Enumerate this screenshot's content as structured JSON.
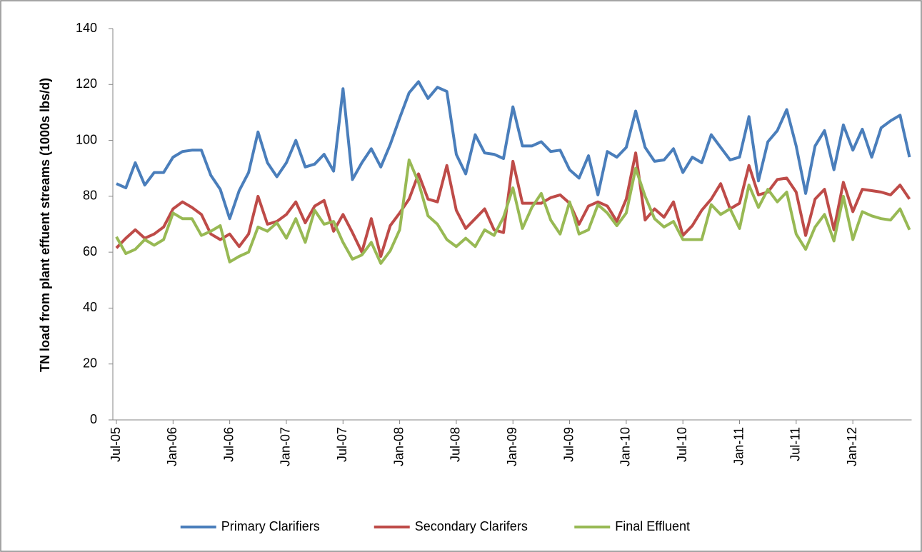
{
  "chart_data": {
    "type": "line",
    "ylabel": "TN load from plant effuent streams (1000s lbs/d)",
    "categories": [
      "Jul-05",
      null,
      null,
      null,
      null,
      null,
      "Jan-06",
      null,
      null,
      null,
      null,
      null,
      "Jul-06",
      null,
      null,
      null,
      null,
      null,
      "Jan-07",
      null,
      null,
      null,
      null,
      null,
      "Jul-07",
      null,
      null,
      null,
      null,
      null,
      "Jan-08",
      null,
      null,
      null,
      null,
      null,
      "Jul-08",
      null,
      null,
      null,
      null,
      null,
      "Jan-09",
      null,
      null,
      null,
      null,
      null,
      "Jul-09",
      null,
      null,
      null,
      null,
      null,
      "Jan-10",
      null,
      null,
      null,
      null,
      null,
      "Jul-10",
      null,
      null,
      null,
      null,
      null,
      "Jan-11",
      null,
      null,
      null,
      null,
      null,
      "Jul-11",
      null,
      null,
      null,
      null,
      null,
      "Jan-12",
      null,
      null,
      null,
      null,
      null,
      null
    ],
    "series": [
      {
        "name": "Primary Clarifiers",
        "color": "#4a7ebb",
        "values": [
          84.5,
          83,
          92,
          84,
          88.5,
          88.5,
          94,
          96,
          96.5,
          96.5,
          87.5,
          82.5,
          72,
          82,
          88.5,
          103,
          92,
          87,
          92,
          100,
          90.5,
          91.5,
          95,
          89,
          118.5,
          86,
          92,
          97,
          90.5,
          98.5,
          108,
          117,
          121,
          115,
          119,
          117.5,
          95,
          88,
          102,
          95.5,
          95,
          93.5,
          112,
          98,
          98,
          99.5,
          96,
          96.5,
          89.5,
          86.5,
          94.5,
          80.5,
          96,
          94,
          97.5,
          110.5,
          97.5,
          92.5,
          93,
          97,
          88.5,
          94,
          92,
          102,
          97.5,
          93,
          94,
          108.5,
          85.5,
          99.5,
          103.5,
          111,
          98,
          81,
          98,
          103.5,
          89.5,
          105.5,
          96.5,
          104,
          94,
          104.5,
          107,
          109,
          94
        ]
      },
      {
        "name": "Secondary Clarifers",
        "color": "#be4b48",
        "values": [
          61.5,
          65,
          68,
          65,
          66.5,
          69,
          75.5,
          78,
          76,
          73.5,
          66.5,
          64.5,
          66.5,
          62,
          66.5,
          80,
          70,
          71,
          73.5,
          78,
          70.5,
          76.5,
          78.5,
          67.5,
          73.5,
          67,
          60,
          72,
          58.5,
          69.5,
          74,
          79,
          88,
          79,
          78,
          91,
          75,
          68.5,
          72,
          75.5,
          68,
          67,
          92.5,
          77.5,
          77.5,
          77.5,
          79.5,
          80.5,
          77.5,
          70,
          76.5,
          78,
          76.5,
          71,
          79,
          95.5,
          71.5,
          75.5,
          72.5,
          78,
          66,
          69.5,
          75,
          79,
          84.5,
          75.5,
          77.5,
          91,
          80.5,
          81.5,
          86,
          86.5,
          81.5,
          66,
          79,
          82.5,
          68,
          85,
          74.5,
          82.5,
          82,
          81.5,
          80.5,
          84,
          79
        ]
      },
      {
        "name": "Final Effluent",
        "color": "#98b954",
        "values": [
          65.5,
          59.5,
          61,
          64.5,
          62.5,
          64.5,
          74,
          72,
          72,
          66,
          67.5,
          69.5,
          56.5,
          58.5,
          60,
          69,
          67.5,
          70.5,
          65,
          72,
          63.5,
          75,
          70,
          71,
          63.5,
          57.5,
          59,
          63.5,
          56,
          60.5,
          68,
          93,
          85,
          73,
          70,
          64.5,
          62,
          65,
          62,
          68,
          66,
          72.5,
          83,
          68.5,
          76,
          81,
          71.5,
          66.5,
          78,
          66.5,
          68,
          77,
          74,
          69.5,
          74,
          90,
          80,
          72,
          69,
          71,
          64.5,
          64.5,
          64.5,
          77,
          73.5,
          75.5,
          68.5,
          84,
          76,
          82.5,
          78,
          81.5,
          66.5,
          61,
          69,
          73.5,
          64,
          80,
          64.5,
          74.5,
          73,
          72,
          71.5,
          75.5,
          68
        ]
      }
    ],
    "ylim": [
      0,
      140
    ],
    "yticks": [
      0,
      20,
      40,
      60,
      80,
      100,
      120,
      140
    ],
    "grid": false,
    "legend": "bottom"
  }
}
